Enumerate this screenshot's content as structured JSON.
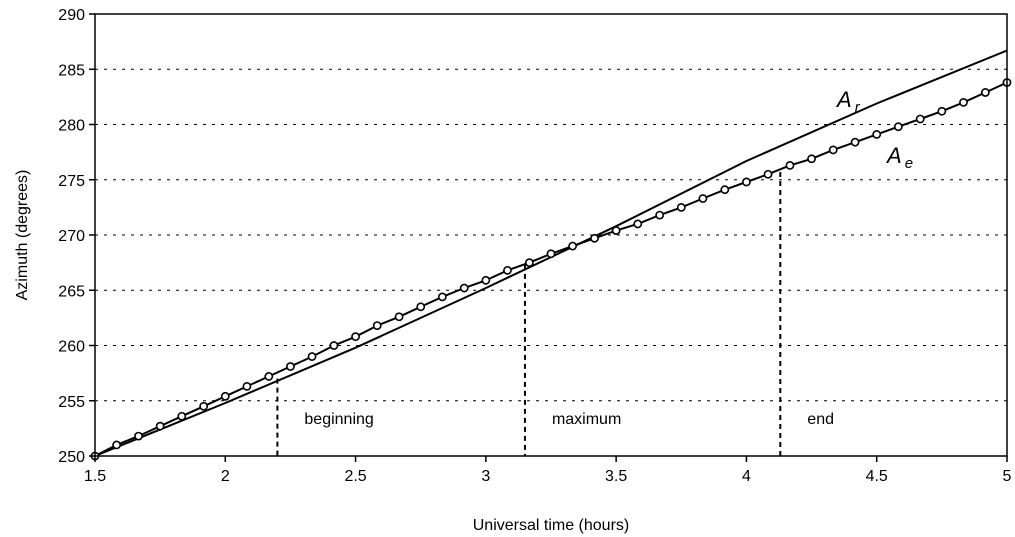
{
  "chart_data": {
    "type": "line",
    "title": "",
    "xlabel": "Universal time (hours)",
    "ylabel": "Azimuth (degrees)",
    "xlim": [
      1.5,
      5
    ],
    "ylim": [
      250,
      290
    ],
    "x_ticks": [
      1.5,
      2,
      2.5,
      3,
      3.5,
      4,
      4.5,
      5
    ],
    "y_ticks": [
      250,
      255,
      260,
      265,
      270,
      275,
      280,
      285,
      290
    ],
    "x_tick_labels": [
      "1.5",
      "2",
      "2.5",
      "3",
      "3.5",
      "4",
      "4.5",
      "5"
    ],
    "y_tick_labels": [
      "250",
      "255",
      "260",
      "265",
      "270",
      "275",
      "280",
      "285",
      "290"
    ],
    "grid": "horizontal dotted",
    "series": [
      {
        "name": "A_r",
        "label_main": "A",
        "label_sub": "r",
        "marker": "none",
        "x": [
          1.5,
          2.0,
          2.5,
          3.0,
          3.5,
          4.0,
          4.5,
          5.0
        ],
        "y": [
          250.0,
          254.8,
          259.8,
          265.2,
          270.8,
          276.7,
          281.9,
          286.7
        ]
      },
      {
        "name": "A_e",
        "label_main": "A",
        "label_sub": "e",
        "marker": "circle",
        "x": [
          1.5,
          1.583,
          1.667,
          1.75,
          1.833,
          1.917,
          2.0,
          2.083,
          2.167,
          2.25,
          2.333,
          2.417,
          2.5,
          2.583,
          2.667,
          2.75,
          2.833,
          2.917,
          3.0,
          3.083,
          3.167,
          3.25,
          3.333,
          3.417,
          3.5,
          3.583,
          3.667,
          3.75,
          3.833,
          3.917,
          4.0,
          4.083,
          4.167,
          4.25,
          4.333,
          4.417,
          4.5,
          4.583,
          4.667,
          4.75,
          4.833,
          4.917,
          5.0
        ],
        "y": [
          250.0,
          251.0,
          251.8,
          252.7,
          253.6,
          254.5,
          255.4,
          256.3,
          257.2,
          258.1,
          259.0,
          260.0,
          260.8,
          261.8,
          262.6,
          263.5,
          264.4,
          265.2,
          265.9,
          266.8,
          267.5,
          268.3,
          269.0,
          269.7,
          270.4,
          271.0,
          271.8,
          272.5,
          273.3,
          274.1,
          274.8,
          275.5,
          276.3,
          276.9,
          277.7,
          278.4,
          279.1,
          279.8,
          280.5,
          281.2,
          282.0,
          282.9,
          283.8
        ]
      }
    ],
    "markers": [
      {
        "label": "beginning",
        "x": 2.2,
        "y_top": 257.0
      },
      {
        "label": "maximum",
        "x": 3.15,
        "y_top": 267.3
      },
      {
        "label": "end",
        "x": 4.13,
        "y_top": 275.7
      }
    ]
  }
}
